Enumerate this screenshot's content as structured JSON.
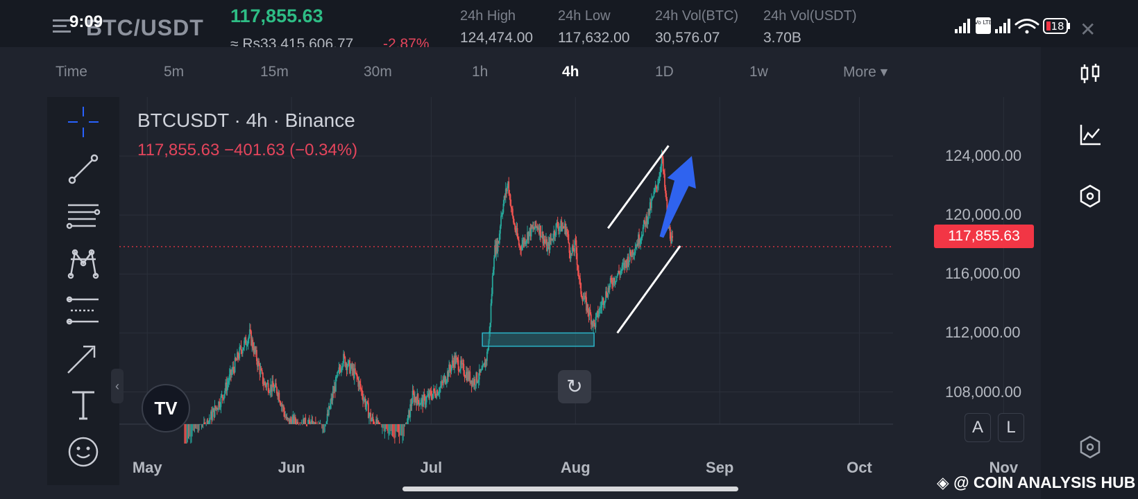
{
  "status_bar": {
    "time": "9:09",
    "battery": "18",
    "volte": "Vo LTE",
    "icons": [
      "signal-icon",
      "volte-icon",
      "signal-icon",
      "wifi-icon",
      "battery-icon"
    ]
  },
  "ticker": {
    "pair": "BTC/USDT",
    "last_price": "117,855.63",
    "fiat_approx": "≈ Rs33,415,606.77",
    "change_pct": "-2.87%",
    "stats": [
      {
        "label": "24h High",
        "value": "124,474.00"
      },
      {
        "label": "24h Low",
        "value": "117,632.00"
      },
      {
        "label": "24h Vol(BTC)",
        "value": "30,576.07"
      },
      {
        "label": "24h Vol(USDT)",
        "value": "3.70B"
      }
    ]
  },
  "timeframes": [
    {
      "label": "Time",
      "active": false
    },
    {
      "label": "5m",
      "active": false
    },
    {
      "label": "15m",
      "active": false
    },
    {
      "label": "30m",
      "active": false
    },
    {
      "label": "1h",
      "active": false
    },
    {
      "label": "4h",
      "active": true
    },
    {
      "label": "1D",
      "active": false
    },
    {
      "label": "1w",
      "active": false
    },
    {
      "label": "More ▾",
      "active": false
    }
  ],
  "left_tools": [
    "crosshair-icon",
    "trend-line-icon",
    "fib-lines-icon",
    "pattern-icon",
    "projection-icon",
    "arrow-brush-icon",
    "text-icon",
    "emoji-icon"
  ],
  "right_tools": [
    "candle-type-icon",
    "indicators-icon",
    "settings-hex-icon"
  ],
  "legend": {
    "title": "BTCUSDT · 4h · Binance",
    "quote": "117,855.63  −401.63 (−0.34%)"
  },
  "tv_logo": "TV",
  "reset_icon": "↻",
  "price_tag": "117,855.63",
  "buttons": {
    "auto": "A",
    "log": "L"
  },
  "collapse_label": "‹",
  "watermark": "◈ @ COIN ANALYSIS HUB",
  "chart_data": {
    "type": "candlestick",
    "title": "BTCUSDT · 4h · Binance",
    "current_price": 117855.63,
    "ylim": [
      104500,
      128000
    ],
    "y_ticks": [
      {
        "value": 108000,
        "label": "108,000.00"
      },
      {
        "value": 112000,
        "label": "112,000.00"
      },
      {
        "value": 116000,
        "label": "116,000.00"
      },
      {
        "value": 120000,
        "label": "120,000.00"
      },
      {
        "value": 124000,
        "label": "124,000.00"
      }
    ],
    "x_ticks": [
      {
        "t": 0,
        "label": "May"
      },
      {
        "t": 31,
        "label": "Jun"
      },
      {
        "t": 61,
        "label": "Jul"
      },
      {
        "t": 92,
        "label": "Aug"
      },
      {
        "t": 123,
        "label": "Sep"
      },
      {
        "t": 153,
        "label": "Oct"
      },
      {
        "t": 184,
        "label": "Nov"
      }
    ],
    "xlim": [
      -6,
      192
    ],
    "price_path": [
      [
        8,
        104200
      ],
      [
        12,
        105400
      ],
      [
        16,
        107600
      ],
      [
        20,
        110800
      ],
      [
        22,
        111900
      ],
      [
        25,
        108600
      ],
      [
        28,
        108100
      ],
      [
        30,
        106000
      ],
      [
        34,
        105800
      ],
      [
        38,
        105300
      ],
      [
        40,
        108000
      ],
      [
        42,
        110300
      ],
      [
        45,
        109000
      ],
      [
        48,
        106200
      ],
      [
        52,
        104600
      ],
      [
        55,
        104500
      ],
      [
        57,
        107700
      ],
      [
        59,
        107300
      ],
      [
        63,
        108300
      ],
      [
        66,
        110200
      ],
      [
        70,
        108700
      ],
      [
        72,
        109300
      ],
      [
        73,
        110500
      ],
      [
        73.5,
        111900
      ],
      [
        74.5,
        117500
      ],
      [
        75.5,
        118200
      ],
      [
        76,
        120000
      ],
      [
        77.5,
        122200
      ],
      [
        78.5,
        119800
      ],
      [
        80,
        117800
      ],
      [
        82,
        118800
      ],
      [
        84,
        119300
      ],
      [
        86,
        117700
      ],
      [
        88,
        119300
      ],
      [
        90,
        119100
      ],
      [
        91,
        117200
      ],
      [
        92,
        118000
      ],
      [
        93,
        115000
      ],
      [
        95,
        113300
      ],
      [
        96,
        112500
      ],
      [
        98,
        114300
      ],
      [
        100,
        115600
      ],
      [
        102,
        116300
      ],
      [
        104,
        117400
      ],
      [
        106,
        118600
      ],
      [
        108,
        120400
      ],
      [
        110,
        122600
      ],
      [
        110.5,
        124100
      ],
      [
        112,
        119200
      ],
      [
        113,
        117855.63
      ]
    ],
    "annotations": {
      "channel_upper": [
        [
          99,
          119100
        ],
        [
          112,
          124700
        ]
      ],
      "channel_lower": [
        [
          101,
          112000
        ],
        [
          114.5,
          117900
        ]
      ],
      "support_zone": {
        "t": [
          72,
          96
        ],
        "price": [
          111100,
          112000
        ]
      },
      "arrow": {
        "from": [
          110.5,
          118500
        ],
        "to": [
          117,
          124000
        ]
      }
    }
  }
}
